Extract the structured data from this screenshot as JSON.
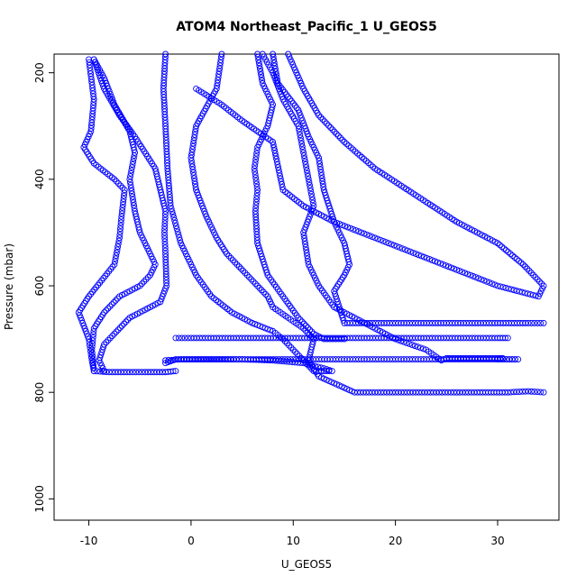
{
  "chart_data": {
    "type": "scatter",
    "title": "ATOM4 Northeast_Pacific_1 U_GEOS5",
    "xlabel": "U_GEOS5",
    "ylabel": "Pressure (mbar)",
    "xlim": [
      -13.4,
      36.0
    ],
    "ylim": [
      1040,
      165
    ],
    "y_reversed": true,
    "x_ticks": [
      -10,
      0,
      10,
      20,
      30
    ],
    "y_ticks": [
      200,
      400,
      600,
      800,
      1000
    ],
    "marker": "open-circle",
    "color": "#0000ff",
    "series": [
      {
        "x": [
          -10,
          -9.5,
          -9.8,
          -10.5,
          -9.5,
          -7.5,
          -6.5,
          -6.8,
          -7.0,
          -7.5,
          -10,
          -11,
          -10,
          -9.7,
          -9.5
        ],
        "y": [
          175,
          250,
          310,
          340,
          370,
          400,
          420,
          470,
          510,
          560,
          620,
          650,
          700,
          740,
          760
        ]
      },
      {
        "x": [
          -9.5,
          -8.5,
          -7.5,
          -6.0,
          -5.5,
          -6.0,
          -5.5,
          -5.0,
          -4.0,
          -3.5,
          -4.0,
          -5.0,
          -7.0,
          -8.5,
          -9.5,
          -9.7,
          -9.5,
          -8.0,
          -6.0,
          -4.5,
          -2.5,
          -1.5
        ],
        "y": [
          175,
          210,
          260,
          310,
          350,
          400,
          460,
          500,
          540,
          560,
          580,
          600,
          620,
          650,
          680,
          720,
          760,
          762,
          762,
          762,
          762,
          760
        ]
      },
      {
        "x": [
          -9.5,
          -8.5,
          -7.0,
          -5.5,
          -3.5,
          -3.0,
          -2.5,
          -2.6,
          -2.5,
          -2.4,
          -3.0,
          -6.0,
          -7.5,
          -8.5,
          -9.0,
          -8.5
        ],
        "y": [
          175,
          230,
          280,
          320,
          380,
          420,
          460,
          500,
          540,
          600,
          630,
          660,
          690,
          710,
          740,
          760
        ]
      },
      {
        "x": [
          -2.5,
          -2.7,
          -2.5,
          -2.3,
          -2.0,
          -1.0,
          0.5,
          2.0,
          4.0,
          6.0,
          8.0,
          9.0,
          10.0,
          11.0,
          12.0,
          12.5,
          13.0,
          13.5,
          13.8,
          13.0,
          11.0,
          8.0,
          5.0,
          2.0,
          -1.0,
          -2.5,
          -2.5,
          -1.5,
          1.0,
          5.0,
          10.0,
          15.0,
          20.0,
          25.0,
          30.0,
          32.0,
          30.0
        ],
        "y": [
          165,
          230,
          300,
          380,
          450,
          520,
          580,
          620,
          650,
          670,
          685,
          700,
          720,
          740,
          760,
          760,
          760,
          760,
          760,
          755,
          745,
          740,
          738,
          738,
          738,
          740,
          745,
          738,
          738,
          738,
          738,
          738,
          738,
          738,
          738,
          738,
          738
        ]
      },
      {
        "x": [
          3.0,
          2.5,
          0.5,
          0.0,
          0.5,
          1.5,
          2.5,
          3.5,
          4.5,
          5.5,
          6.5,
          7.5,
          8.0,
          9.5,
          11.0,
          12.0,
          11.5,
          12.5,
          16.0,
          20.0,
          24.0,
          28.0,
          31.0,
          33.0,
          34.5
        ],
        "y": [
          165,
          230,
          300,
          360,
          420,
          470,
          510,
          540,
          560,
          580,
          600,
          620,
          640,
          660,
          680,
          700,
          740,
          770,
          800,
          800,
          800,
          800,
          800,
          798,
          800
        ]
      },
      {
        "x": [
          -1.5,
          0,
          5,
          10,
          15,
          20,
          25,
          30,
          31
        ],
        "y": [
          698,
          698,
          698,
          698,
          698,
          698,
          698,
          698,
          698
        ]
      },
      {
        "x": [
          6.5,
          7.0,
          8.0,
          7.5,
          6.5,
          6.2,
          6.5,
          6.3,
          6.5,
          7.5,
          9.0,
          10.5,
          12.0,
          13.0,
          15.0
        ],
        "y": [
          165,
          220,
          260,
          300,
          340,
          380,
          420,
          460,
          520,
          580,
          620,
          660,
          690,
          700,
          700
        ]
      },
      {
        "x": [
          7.0,
          8.0,
          9.0,
          10.5,
          11.0,
          11.5,
          12.0,
          11.0,
          11.5,
          12.5,
          14.0,
          16.0,
          18.0,
          20.0,
          23.0,
          24.5,
          25.0,
          30.0,
          30.5
        ],
        "y": [
          165,
          200,
          250,
          300,
          350,
          400,
          450,
          500,
          560,
          600,
          640,
          660,
          680,
          700,
          720,
          740,
          736,
          736,
          736
        ]
      },
      {
        "x": [
          8.0,
          8.5,
          10.5,
          11.5,
          12.5,
          13.0,
          14.0,
          15.0,
          15.5,
          15.0,
          14.0,
          15.0,
          20.0,
          25.0,
          30.0,
          33.0,
          34.5
        ],
        "y": [
          165,
          220,
          270,
          320,
          360,
          420,
          480,
          520,
          560,
          580,
          610,
          670,
          670,
          670,
          670,
          670,
          670
        ]
      },
      {
        "x": [
          9.5,
          11.0,
          12.5,
          15.0,
          18.0,
          22.0,
          26.0,
          30.0,
          32.5,
          34.5,
          34.0,
          30.0,
          26.0,
          22.0,
          18.0,
          14.0,
          11.0,
          9.0,
          8.0,
          5.0,
          3.0,
          0.5
        ],
        "y": [
          165,
          230,
          280,
          330,
          380,
          430,
          480,
          520,
          560,
          600,
          620,
          600,
          570,
          540,
          510,
          480,
          450,
          420,
          330,
          290,
          260,
          230
        ]
      }
    ]
  }
}
